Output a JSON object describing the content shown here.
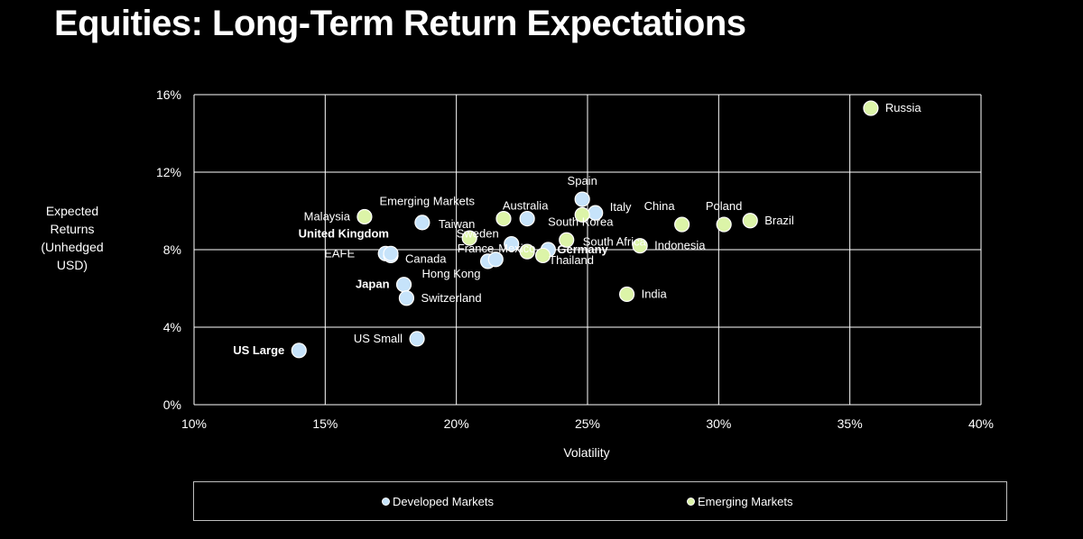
{
  "title": "Equities: Long-Term Return Expectations",
  "chart_data": {
    "type": "scatter",
    "xlabel": "Volatility",
    "ylabel": [
      "Expected",
      "Returns",
      "(Unhedged",
      "USD)"
    ],
    "xlim": [
      0.1,
      0.4
    ],
    "ylim": [
      0,
      0.16
    ],
    "x_ticks": [
      "10%",
      "15%",
      "20%",
      "25%",
      "30%",
      "35%",
      "40%"
    ],
    "y_ticks": [
      "0%",
      "4%",
      "8%",
      "12%",
      "16%"
    ],
    "grid": true,
    "legend_position": "bottom",
    "colors": {
      "Developed Markets": "#c6e3fa",
      "Emerging Markets": "#dcf4a8",
      "outline": "#ffffff",
      "grid": "#ffffff"
    },
    "series": [
      {
        "name": "Developed Markets",
        "points": [
          {
            "label": "US Large",
            "x": 0.14,
            "y": 0.028,
            "bold": true,
            "side": "left"
          },
          {
            "label": "US Small",
            "x": 0.185,
            "y": 0.034,
            "bold": false,
            "side": "left"
          },
          {
            "label": "Japan",
            "x": 0.18,
            "y": 0.062,
            "bold": true,
            "side": "left"
          },
          {
            "label": "Switzerland",
            "x": 0.181,
            "y": 0.055,
            "bold": false,
            "side": "right"
          },
          {
            "label": "EAFE",
            "x": 0.173,
            "y": 0.078,
            "bold": false,
            "side": "left"
          },
          {
            "label": "Canada",
            "x": 0.175,
            "y": 0.077,
            "bold": false,
            "side": "right"
          },
          {
            "label": "United Kingdom",
            "x": 0.175,
            "y": 0.078,
            "bold": true,
            "side": "upleft"
          },
          {
            "label": "Taiwan",
            "x": 0.187,
            "y": 0.094,
            "bold": false,
            "side": "right"
          },
          {
            "label": "Hong Kong",
            "x": 0.212,
            "y": 0.074,
            "bold": false,
            "side": "lowleft"
          },
          {
            "label": "France",
            "x": 0.215,
            "y": 0.075,
            "bold": false,
            "side": "upleft"
          },
          {
            "label": "Sweden",
            "x": 0.221,
            "y": 0.083,
            "bold": false,
            "side": "upleft"
          },
          {
            "label": "Australia",
            "x": 0.227,
            "y": 0.096,
            "bold": false,
            "side": "up"
          },
          {
            "label": "Germany",
            "x": 0.235,
            "y": 0.08,
            "bold": true,
            "side": "right"
          },
          {
            "label": "Spain",
            "x": 0.248,
            "y": 0.106,
            "bold": false,
            "side": "up"
          },
          {
            "label": "Italy",
            "x": 0.253,
            "y": 0.099,
            "bold": false,
            "side": "right"
          }
        ]
      },
      {
        "name": "Emerging Markets",
        "points": [
          {
            "label": "Malaysia",
            "x": 0.165,
            "y": 0.097,
            "bold": false,
            "side": "left"
          },
          {
            "label": "Emerging Markets",
            "x": 0.218,
            "y": 0.096,
            "bold": false,
            "side": "upleft"
          },
          {
            "label": "Mexico",
            "x": 0.205,
            "y": 0.086,
            "bold": false,
            "side": "lowright"
          },
          {
            "label": "Thailand",
            "x": 0.227,
            "y": 0.079,
            "bold": false,
            "side": "right"
          },
          {
            "label": "",
            "x": 0.233,
            "y": 0.077,
            "bold": false,
            "side": "none"
          },
          {
            "label": "South Korea",
            "x": 0.248,
            "y": 0.098,
            "bold": false,
            "side": "lowleft2"
          },
          {
            "label": "South Africa",
            "x": 0.242,
            "y": 0.085,
            "bold": false,
            "side": "right"
          },
          {
            "label": "Indonesia",
            "x": 0.27,
            "y": 0.082,
            "bold": false,
            "side": "right"
          },
          {
            "label": "India",
            "x": 0.265,
            "y": 0.057,
            "bold": false,
            "side": "right"
          },
          {
            "label": "China",
            "x": 0.286,
            "y": 0.093,
            "bold": false,
            "side": "upleft"
          },
          {
            "label": "Poland",
            "x": 0.302,
            "y": 0.093,
            "bold": false,
            "side": "up"
          },
          {
            "label": "Brazil",
            "x": 0.312,
            "y": 0.095,
            "bold": false,
            "side": "right"
          },
          {
            "label": "Russia",
            "x": 0.358,
            "y": 0.153,
            "bold": false,
            "side": "right"
          }
        ]
      }
    ]
  },
  "legend": {
    "developed": "Developed Markets",
    "emerging": "Emerging Markets"
  }
}
